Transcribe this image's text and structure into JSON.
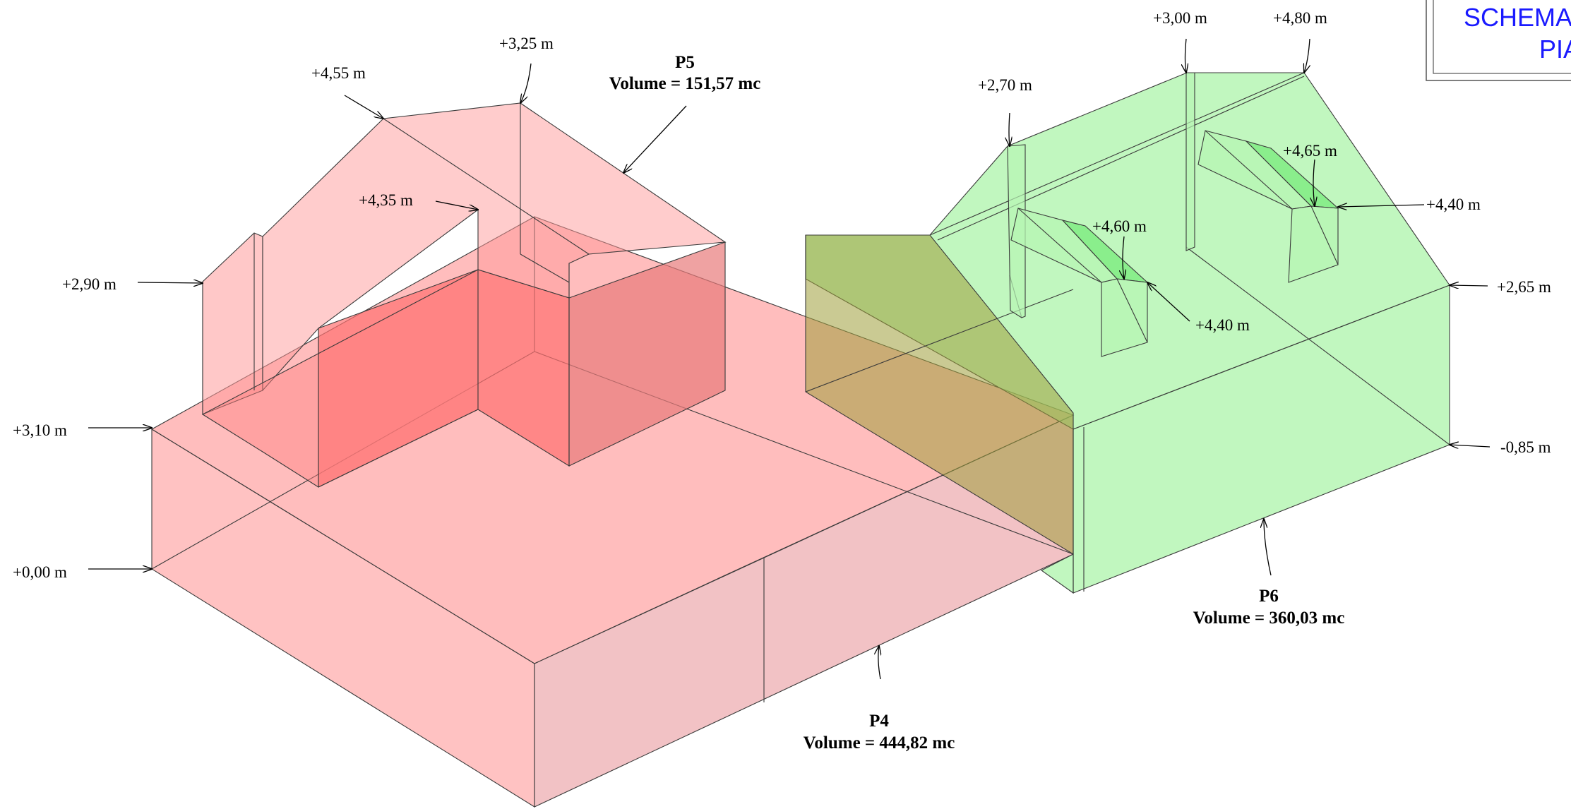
{
  "title_box": {
    "line1": "SCHEMA",
    "line2": "PIA"
  },
  "colors": {
    "p4_fill": "#ff9a9a",
    "p5_fill": "#ff8a8a",
    "p6_fill": "#8ef08a",
    "title_blue": "#1a1aff"
  },
  "volumes": {
    "p4": {
      "name": "P4",
      "volume": "Volume = 444,82 mc"
    },
    "p5": {
      "name": "P5",
      "volume": "Volume = 151,57 mc"
    },
    "p6": {
      "name": "P6",
      "volume": "Volume = 360,03 mc"
    }
  },
  "heights": {
    "h_325": "+3,25 m",
    "h_455": "+4,55 m",
    "h_435": "+4,35 m",
    "h_290": "+2,90 m",
    "h_310": "+3,10 m",
    "h_000": "+0,00 m",
    "h_300": "+3,00 m",
    "h_480": "+4,80 m",
    "h_270": "+2,70 m",
    "h_465": "+4,65 m",
    "h_440a": "+4,40 m",
    "h_460": "+4,60 m",
    "h_440b": "+4,40 m",
    "h_265": "+2,65 m",
    "h_085": "-0,85 m"
  }
}
